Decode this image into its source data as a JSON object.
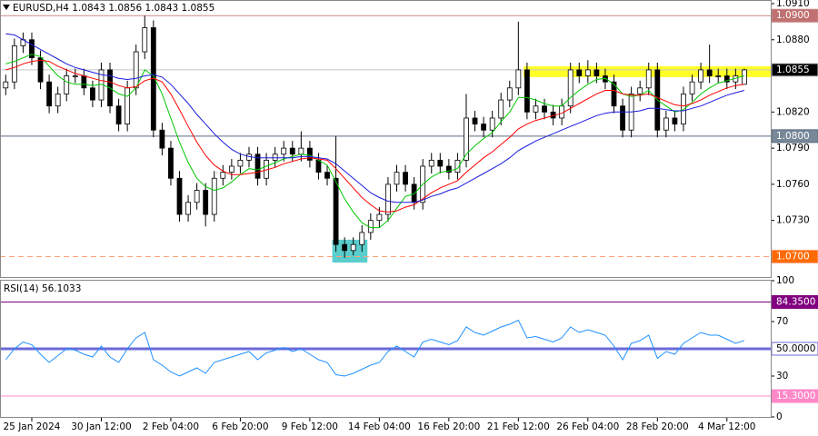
{
  "header": "EURUSD,H4  1.0843 1.0856 1.0843 1.0855",
  "chart_data": [
    {
      "type": "candlestick",
      "categories": [
        null,
        null,
        null,
        "25 Jan 2024",
        null,
        null,
        null,
        null,
        null,
        null,
        null,
        "30 Jan 12:00",
        null,
        null,
        null,
        null,
        null,
        null,
        null,
        "2 Feb 04:00",
        null,
        null,
        null,
        null,
        null,
        null,
        null,
        "6 Feb 20:00",
        null,
        null,
        null,
        null,
        null,
        null,
        null,
        "9 Feb 12:00",
        null,
        null,
        null,
        null,
        null,
        null,
        null,
        "14 Feb 04:00",
        null,
        null,
        null,
        null,
        null,
        null,
        null,
        "16 Feb 20:00",
        null,
        null,
        null,
        null,
        null,
        null,
        null,
        "21 Feb 12:00",
        null,
        null,
        null,
        null,
        null,
        null,
        null,
        "26 Feb 04:00",
        null,
        null,
        null,
        null,
        null,
        null,
        null,
        "28 Feb 20:00",
        null,
        null,
        null,
        null,
        null,
        null,
        null,
        "4 Mar 12:00",
        null,
        null
      ],
      "open": [
        1.084,
        1.0845,
        1.0875,
        1.088,
        1.0865,
        1.0845,
        1.0825,
        1.0835,
        1.085,
        1.085,
        1.084,
        1.083,
        1.0855,
        1.0825,
        1.081,
        1.084,
        1.087,
        1.089,
        1.0805,
        1.079,
        1.0765,
        1.0735,
        1.0745,
        1.0755,
        1.0735,
        1.0765,
        1.077,
        1.0775,
        1.078,
        1.0785,
        1.0765,
        1.078,
        1.0785,
        1.079,
        1.0785,
        1.079,
        1.078,
        1.077,
        1.0765,
        1.071,
        1.0705,
        1.071,
        1.072,
        1.073,
        1.0735,
        1.076,
        1.077,
        1.076,
        1.0745,
        1.0775,
        1.078,
        1.0775,
        1.077,
        1.078,
        1.0815,
        1.081,
        1.0805,
        1.0815,
        1.083,
        1.084,
        1.0855,
        1.082,
        1.0825,
        1.082,
        1.0815,
        1.0825,
        1.0855,
        1.085,
        1.0855,
        1.085,
        1.0845,
        1.0825,
        1.0805,
        1.0835,
        1.084,
        1.0855,
        1.0805,
        1.0815,
        1.081,
        1.0835,
        1.0845,
        1.0855,
        1.085,
        1.085,
        1.0845,
        1.0843
      ],
      "high": [
        1.0851,
        1.0881,
        1.0886,
        1.0886,
        1.0871,
        1.0851,
        1.0841,
        1.0856,
        1.0856,
        1.0856,
        1.0846,
        1.0861,
        1.0861,
        1.0831,
        1.0846,
        1.0876,
        1.09,
        1.0896,
        1.0811,
        1.0796,
        1.0771,
        1.0751,
        1.0761,
        1.0761,
        1.0771,
        1.0776,
        1.0781,
        1.0786,
        1.0791,
        1.0791,
        1.0786,
        1.0791,
        1.0796,
        1.0796,
        1.0804,
        1.0796,
        1.0786,
        1.0776,
        1.08,
        1.0716,
        1.0716,
        1.0726,
        1.0736,
        1.0741,
        1.0766,
        1.0776,
        1.0776,
        1.0766,
        1.0781,
        1.0786,
        1.0786,
        1.0781,
        1.0786,
        1.0835,
        1.0821,
        1.0816,
        1.0821,
        1.0836,
        1.0846,
        1.0895,
        1.0861,
        1.0831,
        1.0831,
        1.0826,
        1.0831,
        1.0861,
        1.0861,
        1.0863,
        1.0861,
        1.0856,
        1.0851,
        1.0831,
        1.0841,
        1.0846,
        1.0861,
        1.0861,
        1.0821,
        1.0821,
        1.0841,
        1.0851,
        1.0861,
        1.0876,
        1.0856,
        1.0856,
        1.0856,
        1.0856
      ],
      "low": [
        1.0834,
        1.0839,
        1.0869,
        1.0859,
        1.0839,
        1.0819,
        1.0819,
        1.0829,
        1.0844,
        1.0834,
        1.0824,
        1.0824,
        1.0819,
        1.0804,
        1.0804,
        1.0834,
        1.0864,
        1.0799,
        1.0784,
        1.0759,
        1.0729,
        1.0729,
        1.0739,
        1.0725,
        1.0729,
        1.0759,
        1.0764,
        1.0769,
        1.0774,
        1.0759,
        1.0759,
        1.0774,
        1.0779,
        1.0779,
        1.0779,
        1.0774,
        1.0764,
        1.0759,
        1.0704,
        1.0699,
        1.0701,
        1.0704,
        1.0714,
        1.0724,
        1.0729,
        1.0754,
        1.0754,
        1.0739,
        1.0739,
        1.0769,
        1.0769,
        1.0764,
        1.0764,
        1.0774,
        1.0804,
        1.0799,
        1.0799,
        1.0809,
        1.0824,
        1.0834,
        1.0814,
        1.0814,
        1.0814,
        1.0809,
        1.0809,
        1.0819,
        1.0844,
        1.0844,
        1.0844,
        1.0839,
        1.0819,
        1.0799,
        1.0799,
        1.0829,
        1.0834,
        1.0799,
        1.0799,
        1.0804,
        1.0804,
        1.0829,
        1.0839,
        1.0844,
        1.0844,
        1.0839,
        1.0839,
        1.0843
      ],
      "close": [
        1.0845,
        1.0875,
        1.088,
        1.0865,
        1.0845,
        1.0825,
        1.0835,
        1.085,
        1.085,
        1.084,
        1.083,
        1.0855,
        1.0825,
        1.081,
        1.084,
        1.087,
        1.089,
        1.0805,
        1.079,
        1.0765,
        1.0735,
        1.0745,
        1.0755,
        1.0735,
        1.0765,
        1.077,
        1.0775,
        1.078,
        1.0785,
        1.0765,
        1.078,
        1.0785,
        1.079,
        1.0785,
        1.079,
        1.078,
        1.077,
        1.0765,
        1.071,
        1.0705,
        1.071,
        1.072,
        1.073,
        1.0735,
        1.076,
        1.077,
        1.076,
        1.0745,
        1.0775,
        1.078,
        1.0775,
        1.077,
        1.078,
        1.0815,
        1.081,
        1.0805,
        1.0815,
        1.083,
        1.084,
        1.0855,
        1.082,
        1.0825,
        1.082,
        1.0815,
        1.0825,
        1.0855,
        1.085,
        1.0855,
        1.085,
        1.0845,
        1.0825,
        1.0805,
        1.0835,
        1.084,
        1.0855,
        1.0805,
        1.0815,
        1.081,
        1.0835,
        1.0845,
        1.0855,
        1.085,
        1.085,
        1.0845,
        1.085,
        1.0855
      ],
      "up_color": "#ffffff",
      "down_color": "#000000",
      "lines": [
        {
          "color": "#00c800",
          "values": [
            1.086,
            1.0862,
            1.0865,
            1.0868,
            1.0866,
            1.0858,
            1.085,
            1.0845,
            1.0843,
            1.0843,
            1.0842,
            1.0843,
            1.084,
            1.0835,
            1.0833,
            1.084,
            1.0855,
            1.085,
            1.0835,
            1.0815,
            1.0795,
            1.0778,
            1.0765,
            1.0758,
            1.0755,
            1.0757,
            1.0762,
            1.0768,
            1.0773,
            1.0772,
            1.0775,
            1.0778,
            1.0781,
            1.0783,
            1.0785,
            1.0784,
            1.078,
            1.0776,
            1.0762,
            1.0748,
            1.0737,
            1.0728,
            1.0724,
            1.0724,
            1.073,
            1.074,
            1.075,
            1.0752,
            1.076,
            1.0766,
            1.077,
            1.0771,
            1.0773,
            1.0785,
            1.0792,
            1.0798,
            1.0803,
            1.0812,
            1.082,
            1.0832,
            1.0832,
            1.083,
            1.0827,
            1.0825,
            1.0825,
            1.0832,
            1.0838,
            1.0843,
            1.0847,
            1.0848,
            1.0843,
            1.0835,
            1.0833,
            1.0834,
            1.0838,
            1.083,
            1.0825,
            1.082,
            1.0822,
            1.0828,
            1.0835,
            1.084,
            1.0844,
            1.0846,
            1.0848,
            1.085
          ]
        },
        {
          "color": "#ff0000",
          "values": [
            1.0855,
            1.0857,
            1.086,
            1.0862,
            1.0863,
            1.0862,
            1.0858,
            1.0855,
            1.0852,
            1.085,
            1.0848,
            1.0846,
            1.0845,
            1.0842,
            1.084,
            1.0841,
            1.0846,
            1.0848,
            1.0845,
            1.0835,
            1.0822,
            1.0808,
            1.0795,
            1.0784,
            1.0776,
            1.0771,
            1.0768,
            1.0768,
            1.0769,
            1.077,
            1.0772,
            1.0774,
            1.0777,
            1.0779,
            1.0781,
            1.0782,
            1.0781,
            1.078,
            1.0773,
            1.0765,
            1.0757,
            1.0749,
            1.0743,
            1.0738,
            1.0737,
            1.0738,
            1.0741,
            1.0743,
            1.0748,
            1.0753,
            1.0757,
            1.076,
            1.0763,
            1.077,
            1.0776,
            1.0782,
            1.0787,
            1.0793,
            1.0799,
            1.0806,
            1.081,
            1.0813,
            1.0815,
            1.0817,
            1.0819,
            1.0823,
            1.0827,
            1.0831,
            1.0835,
            1.0838,
            1.0838,
            1.0835,
            1.0834,
            1.0834,
            1.0835,
            1.0832,
            1.0829,
            1.0826,
            1.0825,
            1.0827,
            1.083,
            1.0834,
            1.0837,
            1.084,
            1.0842,
            1.0843
          ]
        },
        {
          "color": "#1a1add",
          "values": [
            1.0885,
            1.0884,
            1.088,
            1.0876,
            1.0872,
            1.0868,
            1.0864,
            1.086,
            1.0857,
            1.0855,
            1.0853,
            1.0851,
            1.085,
            1.0848,
            1.0847,
            1.0848,
            1.085,
            1.0851,
            1.0849,
            1.0843,
            1.0835,
            1.0827,
            1.0818,
            1.081,
            1.0802,
            1.0795,
            1.0789,
            1.0785,
            1.0783,
            1.0782,
            1.0782,
            1.0782,
            1.0782,
            1.0782,
            1.0783,
            1.0783,
            1.0782,
            1.0781,
            1.0777,
            1.0771,
            1.0765,
            1.0759,
            1.0753,
            1.0749,
            1.0746,
            1.0745,
            1.0745,
            1.0745,
            1.0747,
            1.075,
            1.0752,
            1.0755,
            1.0757,
            1.0761,
            1.0765,
            1.0769,
            1.0773,
            1.0777,
            1.0782,
            1.0788,
            1.0792,
            1.0796,
            1.0799,
            1.0802,
            1.0805,
            1.0808,
            1.0811,
            1.0814,
            1.0817,
            1.0819,
            1.082,
            1.082,
            1.082,
            1.0821,
            1.0823,
            1.0823,
            1.0822,
            1.0821,
            1.0821,
            1.0823,
            1.0825,
            1.0828,
            1.0831,
            1.0834,
            1.0836,
            1.0838
          ]
        }
      ],
      "ylim": [
        1.0683,
        1.0913
      ],
      "yticks": [
        {
          "value": 1.091,
          "label": "1.0910"
        },
        {
          "value": 1.088,
          "label": "1.0880"
        },
        {
          "value": 1.082,
          "label": "1.0820"
        },
        {
          "value": 1.079,
          "label": "1.0790"
        },
        {
          "value": 1.076,
          "label": "1.0760"
        },
        {
          "value": 1.073,
          "label": "1.0730"
        }
      ],
      "levels": [
        {
          "value": 1.09,
          "label": "1.0900",
          "color": "#c88a8a",
          "label_color": "#c07070",
          "text_color": "#ffffff",
          "style": "solid"
        },
        {
          "value": 1.0855,
          "label": "1.0855",
          "color": "#c8c8c8",
          "label_color": "#000000",
          "text_color": "#ffffff",
          "style": "solid"
        },
        {
          "value": 1.08,
          "label": "1.0800",
          "color": "#5a6a80",
          "label_color": "#778899",
          "text_color": "#ffffff",
          "style": "solid"
        },
        {
          "value": 1.07,
          "label": "1.0700",
          "color": "#ffa07a",
          "label_color": "#ff6a00",
          "text_color": "#ffffff",
          "style": "dashed"
        }
      ],
      "zones": [
        {
          "start": 60,
          "end": 85,
          "low": 1.0849,
          "high": 1.0858,
          "color": "#ffff00"
        },
        {
          "start": 38,
          "end": 41,
          "low": 1.0695,
          "high": 1.0714,
          "color": "#40c4c4"
        }
      ]
    },
    {
      "type": "line",
      "title": "RSI(14) 56.1033",
      "color": "#1e90ff",
      "values": [
        42,
        50,
        55,
        53,
        46,
        40,
        45,
        50,
        49,
        46,
        44,
        52,
        44,
        40,
        50,
        58,
        62,
        42,
        38,
        33,
        30,
        33,
        36,
        32,
        40,
        42,
        44,
        46,
        48,
        42,
        47,
        49,
        51,
        48,
        50,
        46,
        42,
        40,
        31,
        30,
        32,
        35,
        38,
        40,
        48,
        52,
        48,
        44,
        55,
        57,
        55,
        53,
        56,
        66,
        62,
        60,
        63,
        66,
        68,
        71,
        58,
        59,
        57,
        55,
        58,
        66,
        62,
        64,
        62,
        60,
        52,
        42,
        54,
        56,
        60,
        43,
        48,
        46,
        54,
        58,
        62,
        60,
        60,
        57,
        54,
        56.1033
      ],
      "ylim": [
        0,
        100
      ],
      "yticks": [
        100,
        70,
        30,
        0
      ],
      "levels": [
        {
          "value": 84.35,
          "label": "84.3500",
          "color": "#800080",
          "label_color": "#800080",
          "text_color": "#ffffff",
          "style": "solid"
        },
        {
          "value": 50,
          "label": "50.0000",
          "color": "#6a6ad8",
          "label_color": "#ffffff",
          "text_color": "#000000",
          "style": "thick"
        },
        {
          "value": 15.3,
          "label": "15.3000",
          "color": "#ff88c8",
          "label_color": "#ff88c8",
          "text_color": "#ffffff",
          "style": "solid"
        }
      ]
    }
  ]
}
